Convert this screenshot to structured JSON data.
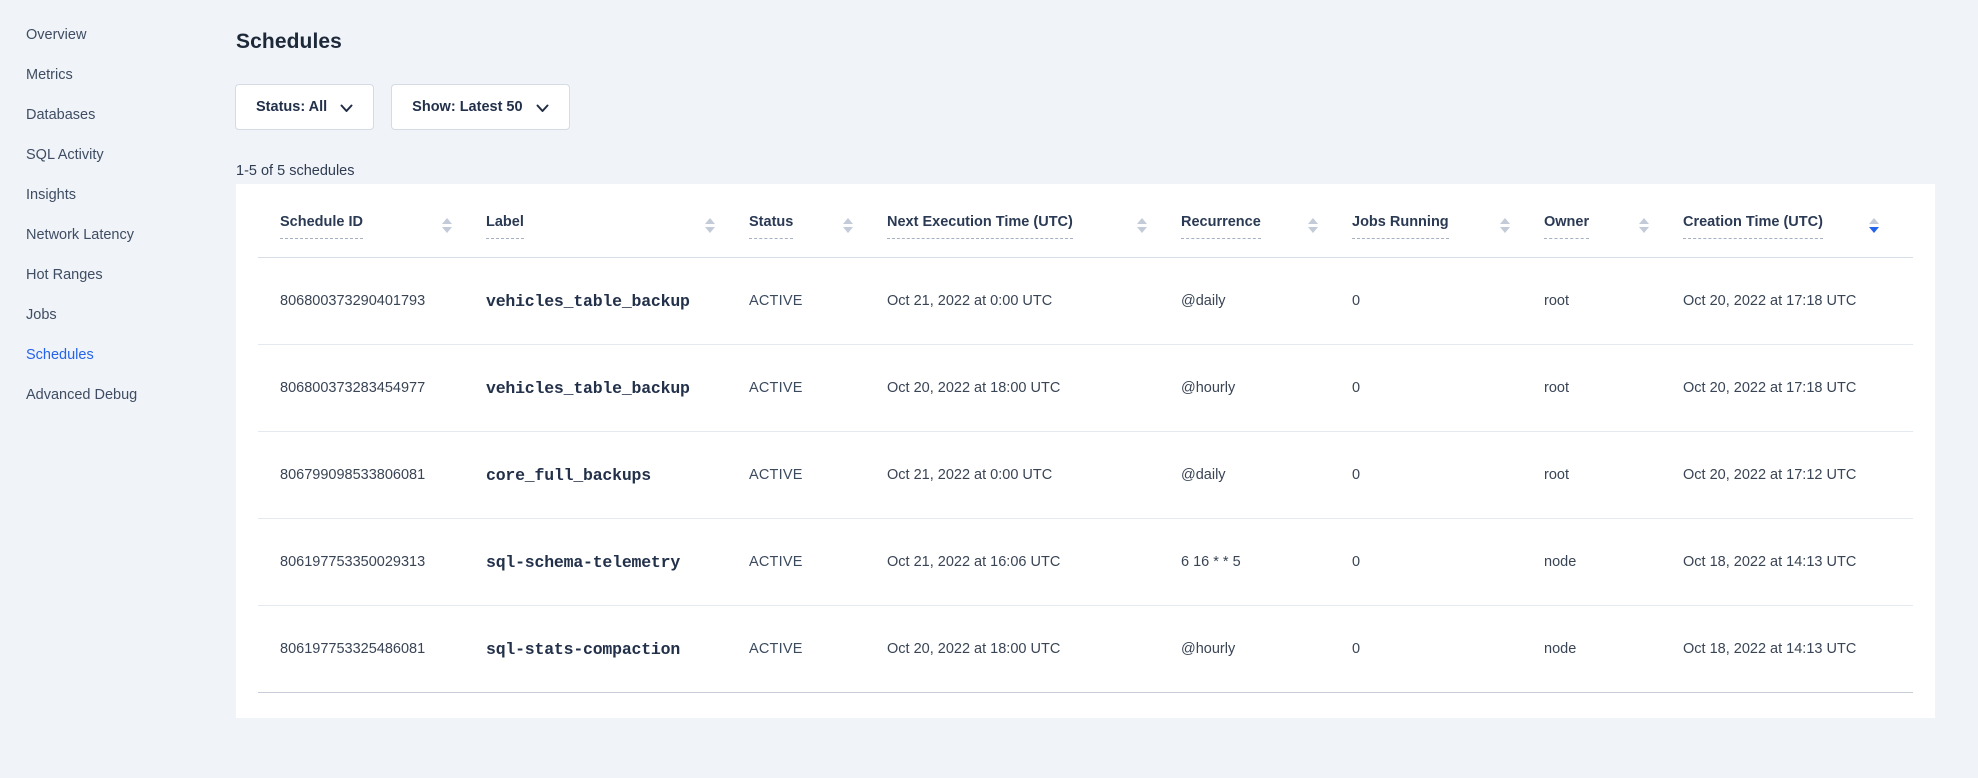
{
  "sidebar": {
    "items": [
      {
        "label": "Overview",
        "active": false
      },
      {
        "label": "Metrics",
        "active": false
      },
      {
        "label": "Databases",
        "active": false
      },
      {
        "label": "SQL Activity",
        "active": false
      },
      {
        "label": "Insights",
        "active": false
      },
      {
        "label": "Network Latency",
        "active": false
      },
      {
        "label": "Hot Ranges",
        "active": false
      },
      {
        "label": "Jobs",
        "active": false
      },
      {
        "label": "Schedules",
        "active": true
      },
      {
        "label": "Advanced Debug",
        "active": false
      }
    ]
  },
  "header": {
    "title": "Schedules"
  },
  "filters": {
    "status_label": "Status: All",
    "show_label": "Show: Latest 50",
    "chevron_icon": "chevron-down"
  },
  "results_count": "1-5 of 5 schedules",
  "table": {
    "columns": [
      {
        "label": "Schedule ID",
        "sort": "none"
      },
      {
        "label": "Label",
        "sort": "none"
      },
      {
        "label": "Status",
        "sort": "none"
      },
      {
        "label": "Next Execution Time (UTC)",
        "sort": "none"
      },
      {
        "label": "Recurrence",
        "sort": "none"
      },
      {
        "label": "Jobs Running",
        "sort": "none"
      },
      {
        "label": "Owner",
        "sort": "none"
      },
      {
        "label": "Creation Time (UTC)",
        "sort": "desc"
      }
    ],
    "rows": [
      {
        "schedule_id": "806800373290401793",
        "label": "vehicles_table_backup",
        "status": "ACTIVE",
        "next_execution": "Oct 21, 2022 at 0:00 UTC",
        "recurrence": "@daily",
        "jobs_running": "0",
        "owner": "root",
        "creation_time": "Oct 20, 2022 at 17:18 UTC"
      },
      {
        "schedule_id": "806800373283454977",
        "label": "vehicles_table_backup",
        "status": "ACTIVE",
        "next_execution": "Oct 20, 2022 at 18:00 UTC",
        "recurrence": "@hourly",
        "jobs_running": "0",
        "owner": "root",
        "creation_time": "Oct 20, 2022 at 17:18 UTC"
      },
      {
        "schedule_id": "806799098533806081",
        "label": "core_full_backups",
        "status": "ACTIVE",
        "next_execution": "Oct 21, 2022 at 0:00 UTC",
        "recurrence": "@daily",
        "jobs_running": "0",
        "owner": "root",
        "creation_time": "Oct 20, 2022 at 17:12 UTC"
      },
      {
        "schedule_id": "806197753350029313",
        "label": "sql-schema-telemetry",
        "status": "ACTIVE",
        "next_execution": "Oct 21, 2022 at 16:06 UTC",
        "recurrence": "6 16 * * 5",
        "jobs_running": "0",
        "owner": "node",
        "creation_time": "Oct 18, 2022 at 14:13 UTC"
      },
      {
        "schedule_id": "806197753325486081",
        "label": "sql-stats-compaction",
        "status": "ACTIVE",
        "next_execution": "Oct 20, 2022 at 18:00 UTC",
        "recurrence": "@hourly",
        "jobs_running": "0",
        "owner": "node",
        "creation_time": "Oct 18, 2022 at 14:13 UTC"
      }
    ]
  },
  "colors": {
    "accent_blue": "#2563eb",
    "page_background": "#f0f3f8",
    "card_background": "#ffffff",
    "heading_text": "#1d2839",
    "body_text": "#394455",
    "row_border": "#e5eaf1",
    "sort_icon_inactive": "#c3cbd8"
  }
}
